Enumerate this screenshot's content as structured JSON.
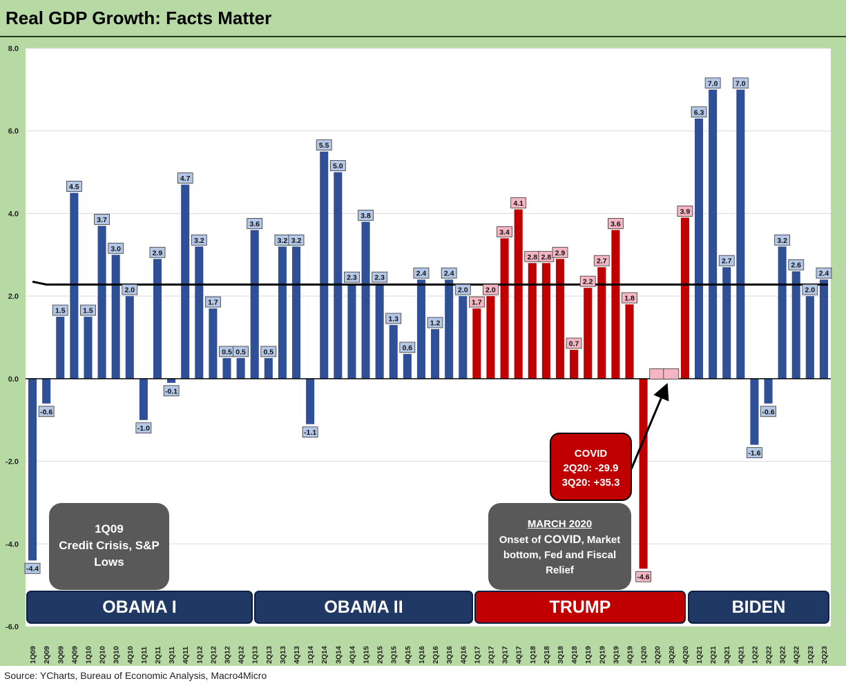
{
  "header": {
    "title": "Real GDP Growth: Facts Matter"
  },
  "footer": {
    "source": "Source: YCharts, Bureau of Economic Analysis, Macro4Micro"
  },
  "annotations": {
    "crisis": {
      "line1": "1Q09",
      "line2": "Credit Crisis, S&P",
      "line3": "Lows"
    },
    "march": {
      "line1": "MARCH 2020",
      "line2a": "Onset of ",
      "line2b": "COVID",
      "line2c": ", Market",
      "line3": "bottom, Fed and Fiscal",
      "line4": "Relief"
    },
    "covid": {
      "line1": "COVID",
      "line2": "2Q20: -29.9",
      "line3": "3Q20: +35.3"
    }
  },
  "eras": [
    {
      "label": "OBAMA I",
      "color": "#1f3864"
    },
    {
      "label": "OBAMA II",
      "color": "#1f3864"
    },
    {
      "label": "TRUMP",
      "color": "#c00000"
    },
    {
      "label": "BIDEN",
      "color": "#1f3864"
    }
  ],
  "colors": {
    "obama_biden_bar": "#2f4f96",
    "trump_bar": "#c00000",
    "blue_label_bg": "#b4c7e7",
    "red_label_bg": "#f4b6c2",
    "average_line": "#000000"
  },
  "chart_data": {
    "type": "bar",
    "title": "Real GDP Growth: Facts Matter",
    "xlabel": "",
    "ylabel": "",
    "ylim": [
      -6.0,
      8.0
    ],
    "yticks": [
      "8.0",
      "6.0",
      "4.0",
      "2.0",
      "0.0",
      "-2.0",
      "-4.0",
      "-6.0"
    ],
    "average_line": {
      "start": 2.35,
      "value": 2.28
    },
    "categories": [
      "1Q09",
      "2Q09",
      "3Q09",
      "4Q09",
      "1Q10",
      "2Q10",
      "3Q10",
      "4Q10",
      "1Q11",
      "2Q11",
      "3Q11",
      "4Q11",
      "1Q12",
      "2Q12",
      "3Q12",
      "4Q12",
      "1Q13",
      "2Q13",
      "3Q13",
      "4Q13",
      "1Q14",
      "2Q14",
      "3Q14",
      "4Q14",
      "1Q15",
      "2Q15",
      "3Q15",
      "4Q15",
      "1Q16",
      "2Q16",
      "3Q16",
      "4Q16",
      "1Q17",
      "2Q17",
      "3Q17",
      "4Q17",
      "1Q18",
      "2Q18",
      "3Q18",
      "4Q18",
      "1Q19",
      "2Q19",
      "3Q19",
      "4Q19",
      "1Q20",
      "2Q20",
      "3Q20",
      "4Q20",
      "1Q21",
      "2Q21",
      "3Q21",
      "4Q21",
      "1Q22",
      "2Q22",
      "3Q22",
      "4Q22",
      "1Q23",
      "2Q23"
    ],
    "values": [
      -4.4,
      -0.6,
      1.5,
      4.5,
      1.5,
      3.7,
      3.0,
      2.0,
      -1.0,
      2.9,
      -0.1,
      4.7,
      3.2,
      1.7,
      0.5,
      0.5,
      3.6,
      0.5,
      3.2,
      3.2,
      -1.1,
      5.5,
      5.0,
      2.3,
      3.8,
      2.3,
      1.3,
      0.6,
      2.4,
      1.2,
      2.4,
      2.0,
      1.7,
      2.0,
      3.4,
      4.1,
      2.8,
      2.8,
      2.9,
      0.7,
      2.2,
      2.7,
      3.6,
      1.8,
      -4.6,
      null,
      null,
      3.9,
      6.3,
      7.0,
      2.7,
      7.0,
      -1.6,
      -0.6,
      3.2,
      2.6,
      2.0,
      2.4
    ],
    "data_labels": [
      "-4.4",
      "-0.6",
      "1.5",
      "4.5",
      "1.5",
      "3.7",
      "3.0",
      "2.0",
      "-1.0",
      "2.9",
      "-0.1",
      "4.7",
      "3.2",
      "1.7",
      "0.5",
      "0.5",
      "3.6",
      "0.5",
      "3.2",
      "3.2",
      "-1.1",
      "5.5",
      "5.0",
      "2.3",
      "3.8",
      "2.3",
      "1.3",
      "0.6",
      "2.4",
      "1.2",
      "2.4",
      "2.0",
      "1.7",
      "2.0",
      "3.4",
      "4.1",
      "2.8",
      "2.8",
      "2.9",
      "0.7",
      "2.2",
      "2.7",
      "3.6",
      "1.8",
      "-4.6",
      "",
      "",
      "3.9",
      "6.3",
      "7.0",
      "2.7",
      "7.0",
      "-1.6",
      "-0.6",
      "3.2",
      "2.6",
      "2.0",
      "2.4"
    ],
    "party": [
      "D",
      "D",
      "D",
      "D",
      "D",
      "D",
      "D",
      "D",
      "D",
      "D",
      "D",
      "D",
      "D",
      "D",
      "D",
      "D",
      "D",
      "D",
      "D",
      "D",
      "D",
      "D",
      "D",
      "D",
      "D",
      "D",
      "D",
      "D",
      "D",
      "D",
      "D",
      "D",
      "R",
      "R",
      "R",
      "R",
      "R",
      "R",
      "R",
      "R",
      "R",
      "R",
      "R",
      "R",
      "R",
      "R",
      "R",
      "R",
      "D",
      "D",
      "D",
      "D",
      "D",
      "D",
      "D",
      "D",
      "D",
      "D"
    ]
  }
}
